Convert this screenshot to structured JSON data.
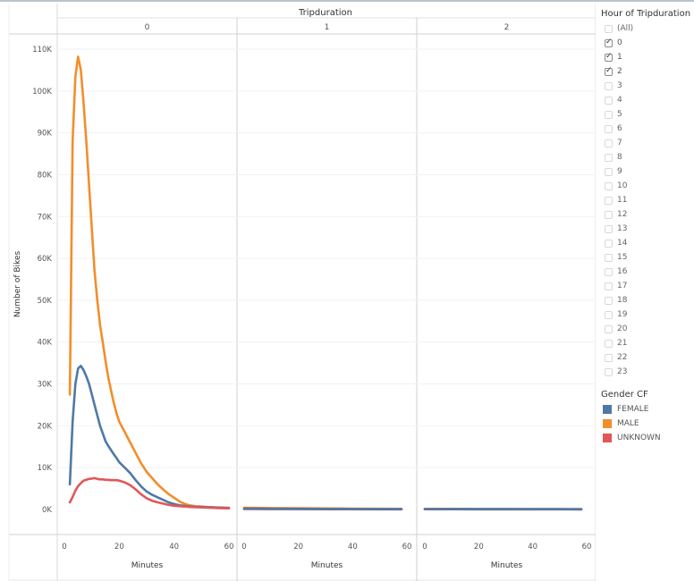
{
  "header": {
    "title": "Tripduration"
  },
  "filter": {
    "title": "Hour of Tripduration",
    "items": [
      {
        "label": "(All)",
        "checked": false
      },
      {
        "label": "0",
        "checked": true
      },
      {
        "label": "1",
        "checked": true
      },
      {
        "label": "2",
        "checked": true
      },
      {
        "label": "3",
        "checked": false
      },
      {
        "label": "4",
        "checked": false
      },
      {
        "label": "5",
        "checked": false
      },
      {
        "label": "6",
        "checked": false
      },
      {
        "label": "7",
        "checked": false
      },
      {
        "label": "8",
        "checked": false
      },
      {
        "label": "9",
        "checked": false
      },
      {
        "label": "10",
        "checked": false
      },
      {
        "label": "11",
        "checked": false
      },
      {
        "label": "12",
        "checked": false
      },
      {
        "label": "13",
        "checked": false
      },
      {
        "label": "14",
        "checked": false
      },
      {
        "label": "15",
        "checked": false
      },
      {
        "label": "16",
        "checked": false
      },
      {
        "label": "17",
        "checked": false
      },
      {
        "label": "18",
        "checked": false
      },
      {
        "label": "19",
        "checked": false
      },
      {
        "label": "20",
        "checked": false
      },
      {
        "label": "21",
        "checked": false
      },
      {
        "label": "22",
        "checked": false
      },
      {
        "label": "23",
        "checked": false
      }
    ]
  },
  "legend": {
    "title": "Gender CF",
    "items": [
      {
        "label": "FEMALE",
        "color": "#4e79a7"
      },
      {
        "label": "MALE",
        "color": "#f28e2b"
      },
      {
        "label": "UNKNOWN",
        "color": "#e15759"
      }
    ]
  },
  "chart_data": {
    "type": "line",
    "title": "Tripduration",
    "ylabel": "Number of Bikes",
    "xlabel": "Minutes",
    "ylim": [
      0,
      115000
    ],
    "xlim": [
      -3,
      60
    ],
    "y_ticks": [
      0,
      10000,
      20000,
      30000,
      40000,
      50000,
      60000,
      70000,
      80000,
      90000,
      100000,
      110000
    ],
    "y_tick_labels": [
      "0K",
      "10K",
      "20K",
      "30K",
      "40K",
      "50K",
      "60K",
      "70K",
      "80K",
      "90K",
      "100K",
      "110K"
    ],
    "x_ticks": [
      0,
      20,
      40,
      60
    ],
    "x_tick_labels": [
      "0",
      "20",
      "40",
      "60"
    ],
    "grid": true,
    "legend_position": "right",
    "panels": [
      {
        "label": "0",
        "series": [
          {
            "name": "MALE",
            "color": "#f28e2b",
            "x": [
              2,
              3,
              4,
              5,
              6,
              7,
              8,
              9,
              10,
              11,
              12,
              13,
              14,
              15,
              16,
              17,
              18,
              19,
              20,
              22,
              24,
              26,
              28,
              30,
              32,
              34,
              36,
              38,
              40,
              42,
              44,
              46,
              48,
              50,
              52,
              54,
              56,
              58,
              60
            ],
            "y": [
              27500,
              88000,
              103500,
              108200,
              105000,
              97000,
              88000,
              77500,
              67000,
              57000,
              50000,
              44000,
              40000,
              35500,
              31500,
              28500,
              25500,
              23000,
              21000,
              18500,
              16000,
              13500,
              11000,
              9000,
              7500,
              6000,
              4800,
              3700,
              2800,
              1900,
              1300,
              950,
              800,
              700,
              600,
              550,
              500,
              450,
              400
            ]
          },
          {
            "name": "FEMALE",
            "color": "#4e79a7",
            "x": [
              2,
              3,
              4,
              5,
              6,
              7,
              8,
              9,
              10,
              11,
              12,
              13,
              14,
              15,
              16,
              17,
              18,
              19,
              20,
              22,
              24,
              26,
              28,
              30,
              32,
              34,
              36,
              38,
              40,
              42,
              44,
              46,
              48,
              50,
              52,
              54,
              56,
              58,
              60
            ],
            "y": [
              6000,
              21000,
              30000,
              33700,
              34300,
              33300,
              31800,
              30000,
              27500,
              25000,
              22500,
              20000,
              18200,
              16300,
              15200,
              14200,
              13200,
              12300,
              11300,
              10000,
              8700,
              7000,
              5500,
              4300,
              3500,
              2900,
              2300,
              1700,
              1300,
              1000,
              850,
              750,
              650,
              600,
              550,
              500,
              450,
              400,
              350
            ]
          },
          {
            "name": "UNKNOWN",
            "color": "#e15759",
            "x": [
              2,
              3,
              4,
              5,
              6,
              7,
              8,
              9,
              10,
              11,
              12,
              13,
              14,
              15,
              16,
              17,
              18,
              19,
              20,
              22,
              24,
              26,
              28,
              30,
              32,
              34,
              36,
              38,
              40,
              42,
              44,
              46,
              48,
              50,
              52,
              54,
              56,
              58,
              60
            ],
            "y": [
              1700,
              3000,
              4500,
              5600,
              6300,
              6900,
              7100,
              7300,
              7400,
              7500,
              7300,
              7200,
              7200,
              7100,
              7100,
              7000,
              7000,
              7000,
              6900,
              6500,
              5800,
              4800,
              3600,
              2700,
              2100,
              1700,
              1400,
              1100,
              900,
              800,
              700,
              600,
              550,
              500,
              450,
              400,
              350,
              300,
              280
            ]
          }
        ]
      },
      {
        "label": "1",
        "series": [
          {
            "name": "MALE",
            "color": "#f28e2b",
            "x": [
              0,
              5,
              10,
              20,
              30,
              40,
              50,
              58
            ],
            "y": [
              400,
              380,
              350,
              300,
              260,
              220,
              180,
              150
            ]
          },
          {
            "name": "UNKNOWN",
            "color": "#e15759",
            "x": [
              0,
              10,
              20,
              30,
              40,
              50,
              58
            ],
            "y": [
              100,
              90,
              80,
              70,
              60,
              50,
              40
            ]
          },
          {
            "name": "FEMALE",
            "color": "#4e79a7",
            "x": [
              0,
              5,
              10,
              20,
              30,
              40,
              50,
              58
            ],
            "y": [
              200,
              190,
              170,
              150,
              130,
              110,
              90,
              80
            ]
          }
        ]
      },
      {
        "label": "2",
        "series": [
          {
            "name": "MALE",
            "color": "#f28e2b",
            "x": [
              0,
              10,
              20,
              30,
              40,
              50,
              58
            ],
            "y": [
              150,
              140,
              130,
              120,
              110,
              100,
              90
            ]
          },
          {
            "name": "UNKNOWN",
            "color": "#e15759",
            "x": [
              0,
              10,
              20,
              30,
              40,
              50,
              58
            ],
            "y": [
              60,
              55,
              50,
              45,
              40,
              35,
              30
            ]
          },
          {
            "name": "FEMALE",
            "color": "#4e79a7",
            "x": [
              0,
              10,
              20,
              30,
              40,
              50,
              58
            ],
            "y": [
              100,
              95,
              90,
              85,
              80,
              75,
              70
            ]
          }
        ]
      }
    ]
  }
}
